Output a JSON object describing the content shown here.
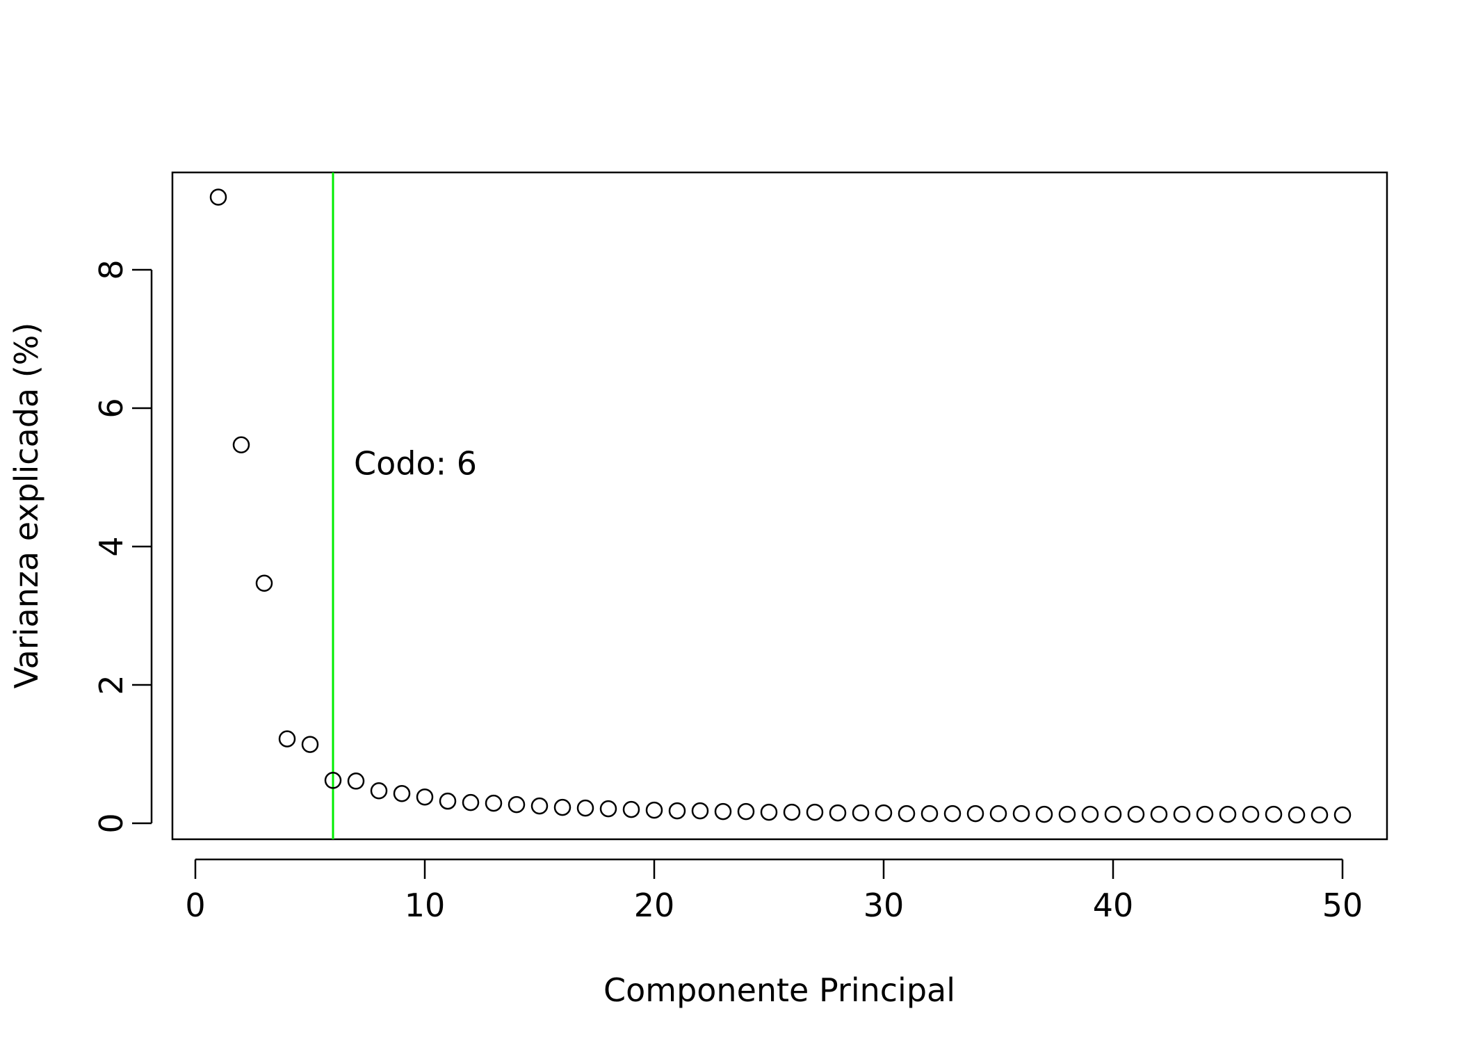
{
  "chart_data": {
    "type": "scatter",
    "title": "",
    "xlabel": "Componente Principal",
    "ylabel": "Varianza explicada (%)",
    "xlim": [
      -1,
      52
    ],
    "ylim": [
      -0.25,
      9.4
    ],
    "x_ticks": [
      0,
      10,
      20,
      30,
      40,
      50
    ],
    "y_ticks": [
      0,
      2,
      4,
      6,
      8
    ],
    "grid": false,
    "point_style": "open-circle",
    "series": [
      {
        "x": [
          1,
          2,
          3,
          4,
          5,
          6,
          7,
          8,
          9,
          10,
          11,
          12,
          13,
          14,
          15,
          16,
          17,
          18,
          19,
          20,
          21,
          22,
          23,
          24,
          25,
          26,
          27,
          28,
          29,
          30,
          31,
          32,
          33,
          34,
          35,
          36,
          37,
          38,
          39,
          40,
          41,
          42,
          43,
          44,
          45,
          46,
          47,
          48,
          49,
          50
        ],
        "y": [
          9.05,
          5.47,
          3.47,
          1.22,
          1.14,
          0.62,
          0.61,
          0.47,
          0.43,
          0.38,
          0.32,
          0.3,
          0.29,
          0.27,
          0.25,
          0.23,
          0.22,
          0.21,
          0.2,
          0.19,
          0.18,
          0.18,
          0.17,
          0.17,
          0.16,
          0.16,
          0.16,
          0.15,
          0.15,
          0.15,
          0.14,
          0.14,
          0.14,
          0.14,
          0.14,
          0.14,
          0.13,
          0.13,
          0.13,
          0.13,
          0.13,
          0.13,
          0.13,
          0.13,
          0.13,
          0.13,
          0.13,
          0.12,
          0.12,
          0.12
        ]
      }
    ],
    "annotations": [
      {
        "type": "vline",
        "x": 6,
        "color": "#00ee00",
        "text": "Codo: 6",
        "text_x": 7,
        "text_y": 5.2
      }
    ]
  },
  "colors": {
    "points": "#000000",
    "axis": "#000000",
    "elbow": "#00ee00"
  }
}
